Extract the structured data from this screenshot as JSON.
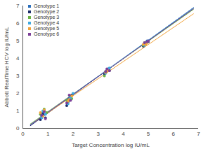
{
  "chart_data": {
    "type": "scatter",
    "x_label": "Target Concentration log IU/mL",
    "y_label": "Abbott RealTime HCV log IU/mL",
    "xlim": [
      0,
      7
    ],
    "ylim": [
      0,
      7
    ],
    "xticks": [
      0,
      1,
      2,
      3,
      4,
      5,
      6,
      7
    ],
    "yticks": [
      0,
      1,
      2,
      3,
      4,
      5,
      6,
      7
    ],
    "grid": false,
    "legend": "top-left",
    "series": [
      {
        "name": "Genotype 1",
        "color": "#2a6ebb",
        "marker": "circle",
        "x": [
          0.75,
          0.8,
          0.85,
          1.8,
          1.85,
          1.9,
          3.3,
          3.35,
          3.4,
          4.85,
          4.9,
          4.95
        ],
        "values": [
          0.7,
          0.9,
          1.0,
          1.5,
          1.7,
          1.8,
          3.2,
          3.3,
          3.4,
          4.8,
          4.9,
          5.0
        ],
        "fit": {
          "x": [
            0.3,
            6.8
          ],
          "values": [
            0.2,
            6.85
          ]
        }
      },
      {
        "name": "Genotype 2",
        "color": "#1c2d6b",
        "marker": "circle",
        "x": [
          0.7,
          0.8,
          0.9,
          1.75,
          1.85,
          1.95,
          3.25,
          3.35,
          3.45,
          4.8,
          4.9,
          5.0
        ],
        "values": [
          0.5,
          0.8,
          0.6,
          1.3,
          1.6,
          1.9,
          3.1,
          3.3,
          3.3,
          4.7,
          4.85,
          4.95
        ],
        "fit": {
          "x": [
            0.3,
            6.8
          ],
          "values": [
            0.15,
            6.9
          ]
        }
      },
      {
        "name": "Genotype 3",
        "color": "#6bb244",
        "marker": "circle",
        "x": [
          0.7,
          0.85,
          0.95,
          1.75,
          1.9,
          1.95,
          3.25,
          3.3,
          3.4,
          4.8,
          4.85,
          4.95
        ],
        "values": [
          0.8,
          1.1,
          0.9,
          1.6,
          1.8,
          1.7,
          3.0,
          3.25,
          3.35,
          4.75,
          4.9,
          4.95
        ],
        "fit": {
          "x": [
            0.3,
            6.8
          ],
          "values": [
            0.25,
            6.8
          ]
        }
      },
      {
        "name": "Genotype 4",
        "color": "#3fa9e0",
        "marker": "circle",
        "x": [
          0.75,
          0.8,
          0.9,
          1.8,
          1.9,
          2.0,
          3.3,
          3.4,
          3.45,
          4.85,
          4.9,
          5.0
        ],
        "values": [
          0.6,
          1.0,
          0.8,
          1.4,
          1.75,
          2.0,
          3.15,
          3.35,
          3.45,
          4.75,
          4.85,
          5.0
        ],
        "fit": {
          "x": [
            0.3,
            6.8
          ],
          "values": [
            0.2,
            6.9
          ]
        }
      },
      {
        "name": "Genotype 5",
        "color": "#f2a33a",
        "marker": "circle",
        "x": [
          0.7,
          0.8,
          0.85,
          1.8,
          1.85,
          1.95,
          3.3,
          3.35,
          3.4,
          4.8,
          4.9,
          4.95
        ],
        "values": [
          0.9,
          0.7,
          1.05,
          1.55,
          1.65,
          1.85,
          3.2,
          3.25,
          3.3,
          4.8,
          4.8,
          4.9
        ],
        "fit": {
          "x": [
            0.5,
            6.8
          ],
          "values": [
            0.4,
            6.55
          ]
        }
      },
      {
        "name": "Genotype 6",
        "color": "#7c3f98",
        "marker": "circle",
        "x": [
          0.75,
          0.85,
          0.9,
          1.75,
          1.85,
          1.9,
          3.3,
          3.35,
          3.45,
          4.85,
          4.95,
          5.0
        ],
        "values": [
          0.75,
          0.95,
          0.55,
          1.45,
          1.9,
          1.6,
          3.25,
          3.4,
          3.3,
          4.9,
          4.95,
          5.0
        ],
        "fit": {
          "x": [
            0.3,
            6.8
          ],
          "values": [
            0.2,
            6.85
          ]
        }
      }
    ]
  }
}
